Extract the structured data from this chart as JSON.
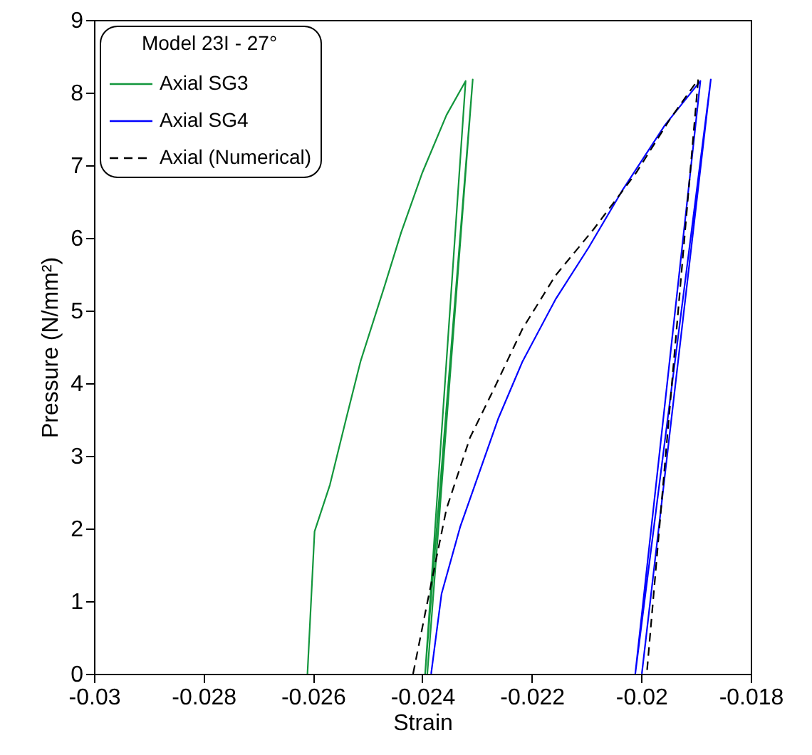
{
  "chart_data": {
    "type": "line",
    "xlabel": "Strain",
    "ylabel": "Pressure (N/mm²)",
    "legend_title": "Model 23I - 27°",
    "legend": "top left",
    "grid": false,
    "xlim": [
      -0.03,
      -0.018
    ],
    "xticks": [
      -0.03,
      -0.028,
      -0.026,
      -0.024,
      -0.022,
      -0.02,
      -0.018
    ],
    "ylim": [
      0,
      9
    ],
    "yticks": [
      0,
      1,
      2,
      3,
      4,
      5,
      6,
      7,
      8,
      9
    ],
    "series": [
      {
        "name": "Axial SG3",
        "color": "#12963c",
        "line_style": "solid",
        "x": [
          -0.0261,
          -0.02597,
          -0.02569,
          -0.02539,
          -0.02513,
          -0.02469,
          -0.02439,
          -0.024,
          -0.02356,
          -0.02321,
          -0.02395,
          -0.02308,
          -0.02391
        ],
        "values": [
          0,
          1.96,
          2.6,
          3.52,
          4.3,
          5.34,
          6.07,
          6.9,
          7.69,
          8.16,
          0,
          8.18,
          0
        ]
      },
      {
        "name": "Axial SG4",
        "color": "#0000ff",
        "line_style": "solid",
        "x": [
          -0.02384,
          -0.02365,
          -0.02331,
          -0.02304,
          -0.02261,
          -0.02217,
          -0.02157,
          -0.02096,
          -0.02035,
          -0.01957,
          -0.01892,
          -0.02011,
          -0.01873,
          -0.01999
        ],
        "values": [
          0,
          1.1,
          2.02,
          2.6,
          3.52,
          4.3,
          5.15,
          5.87,
          6.65,
          7.55,
          8.16,
          0,
          8.18,
          0
        ]
      },
      {
        "name": "Axial (Numerical)",
        "color": "#000000",
        "line_style": "dashed",
        "x": [
          -0.02417,
          -0.02391,
          -0.02356,
          -0.02313,
          -0.0227,
          -0.02217,
          -0.02157,
          -0.02087,
          -0.02009,
          -0.01948,
          -0.01896,
          -0.0199
        ],
        "values": [
          0,
          0.98,
          2.27,
          3.25,
          3.91,
          4.75,
          5.48,
          6.12,
          6.9,
          7.63,
          8.18,
          0
        ]
      }
    ]
  }
}
